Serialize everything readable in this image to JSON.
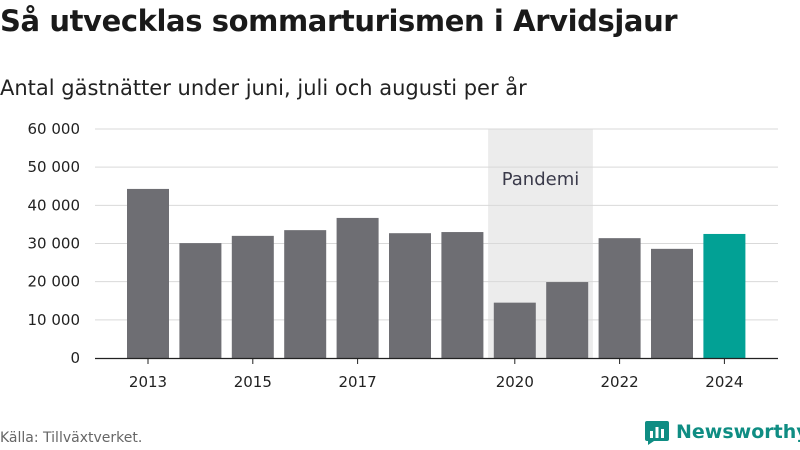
{
  "title": "Så utvecklas sommarturismen i Arvidsjaur",
  "subtitle": "Antal gästnätter under juni, juli och augusti per år",
  "source": "Källa: Tillväxtverket.",
  "brand": "Newsworthy",
  "colors": {
    "bar": "#6e6e73",
    "highlight": "#02a195",
    "pandemic_band": "#ececec",
    "grid": "#d9d9d9",
    "brand": "#0f8d83"
  },
  "icons": {
    "logo": "newsworthy-logo-icon"
  },
  "chart_data": {
    "type": "bar",
    "x": [
      2013,
      2014,
      2015,
      2016,
      2017,
      2018,
      2019,
      2020,
      2021,
      2022,
      2023,
      2024
    ],
    "values": [
      44300,
      30100,
      32000,
      33500,
      36700,
      32700,
      33000,
      14500,
      19900,
      31400,
      28600,
      32500
    ],
    "highlight": [
      2024
    ],
    "ylim": [
      0,
      60000
    ],
    "yticks": [
      0,
      10000,
      20000,
      30000,
      40000,
      50000,
      60000
    ],
    "ytick_labels": [
      "0",
      "10 000",
      "20 000",
      "30 000",
      "40 000",
      "50 000",
      "60 000"
    ],
    "xticks": [
      2013,
      2015,
      2017,
      2020,
      2022,
      2024
    ],
    "xtick_labels": [
      "2013",
      "2015",
      "2017",
      "2020",
      "2022",
      "2024"
    ],
    "grid": true,
    "annotation": {
      "label": "Pandemi",
      "x_start": 2020,
      "x_end": 2021
    }
  }
}
